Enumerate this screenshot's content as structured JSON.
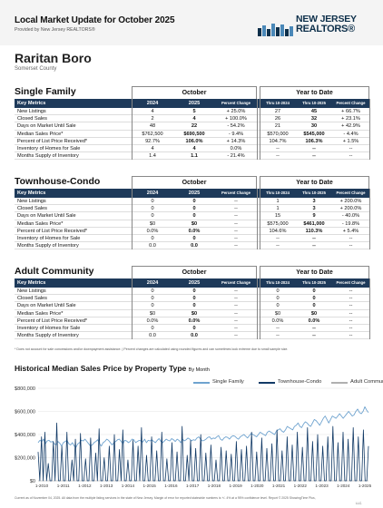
{
  "header": {
    "title": "Local Market Update for October 2025",
    "subtitle": "Provided by New Jersey REALTORS®",
    "logo_line1": "NEW JERSEY",
    "logo_line2": "REALTORS®"
  },
  "area": {
    "name": "Raritan Boro",
    "county": "Somerset County"
  },
  "columns": {
    "key_metrics": "Key Metrics",
    "y2024": "2024",
    "y2025": "2025",
    "pct_change": "Percent Change",
    "thru2024": "Thru 10-2024",
    "thru2025": "Thru 10-2025",
    "october": "October",
    "ytd": "Year to Date"
  },
  "sections": [
    {
      "title": "Single Family",
      "rows": [
        {
          "label": "New Listings",
          "a": "4",
          "b": "5",
          "c": "+ 25.0%",
          "d": "27",
          "e": "45",
          "f": "+ 66.7%"
        },
        {
          "label": "Closed Sales",
          "a": "2",
          "b": "4",
          "c": "+ 100.0%",
          "d": "26",
          "e": "32",
          "f": "+ 23.1%"
        },
        {
          "label": "Days on Market Until Sale",
          "a": "48",
          "b": "22",
          "c": "- 54.2%",
          "d": "21",
          "e": "30",
          "f": "+ 42.9%"
        },
        {
          "label": "Median Sales Price*",
          "a": "$762,500",
          "b": "$690,500",
          "c": "- 9.4%",
          "d": "$570,000",
          "e": "$545,000",
          "f": "- 4.4%"
        },
        {
          "label": "Percent of List Price Received*",
          "a": "92.7%",
          "b": "106.0%",
          "c": "+ 14.3%",
          "d": "104.7%",
          "e": "106.3%",
          "f": "+ 1.5%"
        },
        {
          "label": "Inventory of Homes for Sale",
          "a": "4",
          "b": "4",
          "c": "0.0%",
          "d": "--",
          "e": "--",
          "f": "--"
        },
        {
          "label": "Months Supply of Inventory",
          "a": "1.4",
          "b": "1.1",
          "c": "- 21.4%",
          "d": "--",
          "e": "--",
          "f": "--"
        }
      ]
    },
    {
      "title": "Townhouse-Condo",
      "rows": [
        {
          "label": "New Listings",
          "a": "0",
          "b": "0",
          "c": "--",
          "d": "1",
          "e": "3",
          "f": "+ 200.0%"
        },
        {
          "label": "Closed Sales",
          "a": "0",
          "b": "0",
          "c": "--",
          "d": "1",
          "e": "3",
          "f": "+ 200.0%"
        },
        {
          "label": "Days on Market Until Sale",
          "a": "0",
          "b": "0",
          "c": "--",
          "d": "15",
          "e": "9",
          "f": "- 40.0%"
        },
        {
          "label": "Median Sales Price*",
          "a": "$0",
          "b": "$0",
          "c": "--",
          "d": "$575,000",
          "e": "$461,000",
          "f": "- 19.8%"
        },
        {
          "label": "Percent of List Price Received*",
          "a": "0.0%",
          "b": "0.0%",
          "c": "--",
          "d": "104.6%",
          "e": "110.3%",
          "f": "+ 5.4%"
        },
        {
          "label": "Inventory of Homes for Sale",
          "a": "0",
          "b": "0",
          "c": "--",
          "d": "--",
          "e": "--",
          "f": "--"
        },
        {
          "label": "Months Supply of Inventory",
          "a": "0.0",
          "b": "0.0",
          "c": "--",
          "d": "--",
          "e": "--",
          "f": "--"
        }
      ]
    },
    {
      "title": "Adult Community",
      "rows": [
        {
          "label": "New Listings",
          "a": "0",
          "b": "0",
          "c": "--",
          "d": "0",
          "e": "0",
          "f": "--"
        },
        {
          "label": "Closed Sales",
          "a": "0",
          "b": "0",
          "c": "--",
          "d": "0",
          "e": "0",
          "f": "--"
        },
        {
          "label": "Days on Market Until Sale",
          "a": "0",
          "b": "0",
          "c": "--",
          "d": "0",
          "e": "0",
          "f": "--"
        },
        {
          "label": "Median Sales Price*",
          "a": "$0",
          "b": "$0",
          "c": "--",
          "d": "$0",
          "e": "$0",
          "f": "--"
        },
        {
          "label": "Percent of List Price Received*",
          "a": "0.0%",
          "b": "0.0%",
          "c": "--",
          "d": "0.0%",
          "e": "0.0%",
          "f": "--"
        },
        {
          "label": "Inventory of Homes for Sale",
          "a": "0",
          "b": "0",
          "c": "--",
          "d": "--",
          "e": "--",
          "f": "--"
        },
        {
          "label": "Months Supply of Inventory",
          "a": "0.0",
          "b": "0.0",
          "c": "--",
          "d": "--",
          "e": "--",
          "f": "--"
        }
      ]
    }
  ],
  "footnote": "* Does not account for sale concessions and/or downpayment assistance. | Percent changes are calculated using rounded figures and can sometimes look extreme due to small sample size.",
  "chart_title": "Historical Median Sales Price by Property Type",
  "chart_title_by": "By Month",
  "disclaimer": "Current as of November 04, 2025. All data from the multiple listing services in the state of New Jersey. Margin of error for reported statewide numbers is +/- 4% at a 95% confidence level. Report © 2025 ShowingTime Plus,",
  "disclaimer2": "LLC.",
  "colors": {
    "navy": "#1e3a5a",
    "single_family": "#6fa3cf",
    "townhouse_condo": "#123a66",
    "adult_community": "#b0b0b0"
  },
  "chart_data": {
    "type": "line",
    "title": "Historical Median Sales Price by Property Type",
    "subtitle": "By Month",
    "x_range": [
      "2010-01",
      "2025-10"
    ],
    "x_ticks": [
      "1-2010",
      "1-2011",
      "1-2012",
      "1-2013",
      "1-2014",
      "1-2015",
      "1-2016",
      "1-2017",
      "1-2018",
      "1-2019",
      "1-2020",
      "1-2021",
      "1-2022",
      "1-2023",
      "1-2024",
      "1-2025"
    ],
    "y_ticks": [
      "$800,000",
      "$600,000",
      "$400,000",
      "$200,000",
      "$0"
    ],
    "ylim": [
      0,
      800000
    ],
    "legend": "top",
    "series": [
      {
        "name": "Single Family",
        "color": "#6fa3cf",
        "values": [
          330000,
          350000,
          340000,
          360000,
          320000,
          345000,
          350000,
          335000,
          340000,
          320000,
          310000,
          340000,
          325000,
          300000,
          330000,
          340000,
          350000,
          320000,
          310000,
          330000,
          300000,
          290000,
          320000,
          330000,
          350000,
          345000,
          360000,
          340000,
          320000,
          300000,
          310000,
          330000,
          340000,
          355000,
          320000,
          300000,
          330000,
          340000,
          360000,
          350000,
          330000,
          310000,
          330000,
          340000,
          355000,
          360000,
          340000,
          320000,
          350000,
          345000,
          330000,
          340000,
          360000,
          355000,
          330000,
          340000,
          350000,
          345000,
          335000,
          360000,
          330000,
          350000,
          345000,
          355000,
          340000,
          330000,
          350000,
          365000,
          340000,
          330000,
          345000,
          360000,
          350000,
          345000,
          365000,
          355000,
          340000,
          360000,
          350000,
          330000,
          360000,
          345000,
          355000,
          370000,
          360000,
          345000,
          355000,
          350000,
          370000,
          380000,
          360000,
          345000,
          350000,
          360000,
          375000,
          380000,
          360000,
          370000,
          365000,
          380000,
          390000,
          360000,
          350000,
          370000,
          380000,
          375000,
          360000,
          380000,
          390000,
          385000,
          370000,
          360000,
          380000,
          390000,
          400000,
          385000,
          370000,
          390000,
          410000,
          400000,
          390000,
          380000,
          400000,
          420000,
          410000,
          400000,
          390000,
          420000,
          430000,
          420000,
          410000,
          400000,
          430000,
          440000,
          450000,
          430000,
          420000,
          440000,
          470000,
          460000,
          450000,
          440000,
          470000,
          480000,
          500000,
          470000,
          460000,
          490000,
          510000,
          500000,
          480000,
          470000,
          500000,
          530000,
          520000,
          500000,
          480000,
          510000,
          540000,
          560000,
          530000,
          500000,
          530000,
          560000,
          550000,
          540000,
          560000,
          580000,
          560000,
          540000,
          560000,
          580000,
          600000,
          580000,
          560000,
          570000,
          600000,
          620000,
          590000,
          580000,
          600000,
          640000,
          610000,
          590000
        ]
      },
      {
        "name": "Townhouse-Condo",
        "color": "#123a66",
        "values": [
          250000,
          0,
          380000,
          0,
          420000,
          0,
          150000,
          0,
          0,
          340000,
          0,
          500000,
          0,
          0,
          300000,
          0,
          0,
          420000,
          0,
          0,
          180000,
          0,
          360000,
          0,
          0,
          410000,
          0,
          0,
          190000,
          0,
          0,
          370000,
          0,
          0,
          240000,
          0,
          450000,
          0,
          0,
          200000,
          0,
          0,
          300000,
          0,
          0,
          400000,
          0,
          0,
          270000,
          0,
          440000,
          0,
          0,
          180000,
          0,
          0,
          350000,
          0,
          0,
          300000,
          0,
          460000,
          0,
          0,
          220000,
          0,
          0,
          380000,
          0,
          0,
          260000,
          0,
          0,
          420000,
          0,
          0,
          190000,
          0,
          0,
          330000,
          0,
          0,
          250000,
          0,
          0,
          470000,
          0,
          0,
          220000,
          0,
          350000,
          0,
          0,
          280000,
          0,
          0,
          400000,
          0,
          0,
          240000,
          0,
          0,
          310000,
          0,
          0,
          180000,
          0,
          0,
          290000,
          0,
          0,
          260000,
          0,
          0,
          230000,
          0,
          0,
          340000,
          0,
          0,
          270000,
          0,
          0,
          300000,
          0,
          0,
          420000,
          0,
          0,
          250000,
          0,
          0,
          370000,
          0,
          0,
          280000,
          0,
          0,
          320000,
          0,
          0,
          440000,
          0,
          0,
          260000,
          0,
          0,
          380000,
          0,
          0,
          310000,
          0,
          0,
          420000,
          0,
          0,
          290000,
          0,
          0,
          460000,
          0,
          0,
          340000,
          0,
          0,
          400000,
          0,
          0,
          300000,
          0,
          0,
          380000,
          0,
          0,
          470000,
          0,
          0,
          330000,
          0,
          0,
          420000,
          0,
          0,
          360000,
          0,
          0,
          460000,
          0,
          0,
          380000,
          0,
          0,
          440000,
          0,
          0,
          300000
        ]
      },
      {
        "name": "Adult Community",
        "color": "#b0b0b0",
        "values": []
      }
    ]
  }
}
